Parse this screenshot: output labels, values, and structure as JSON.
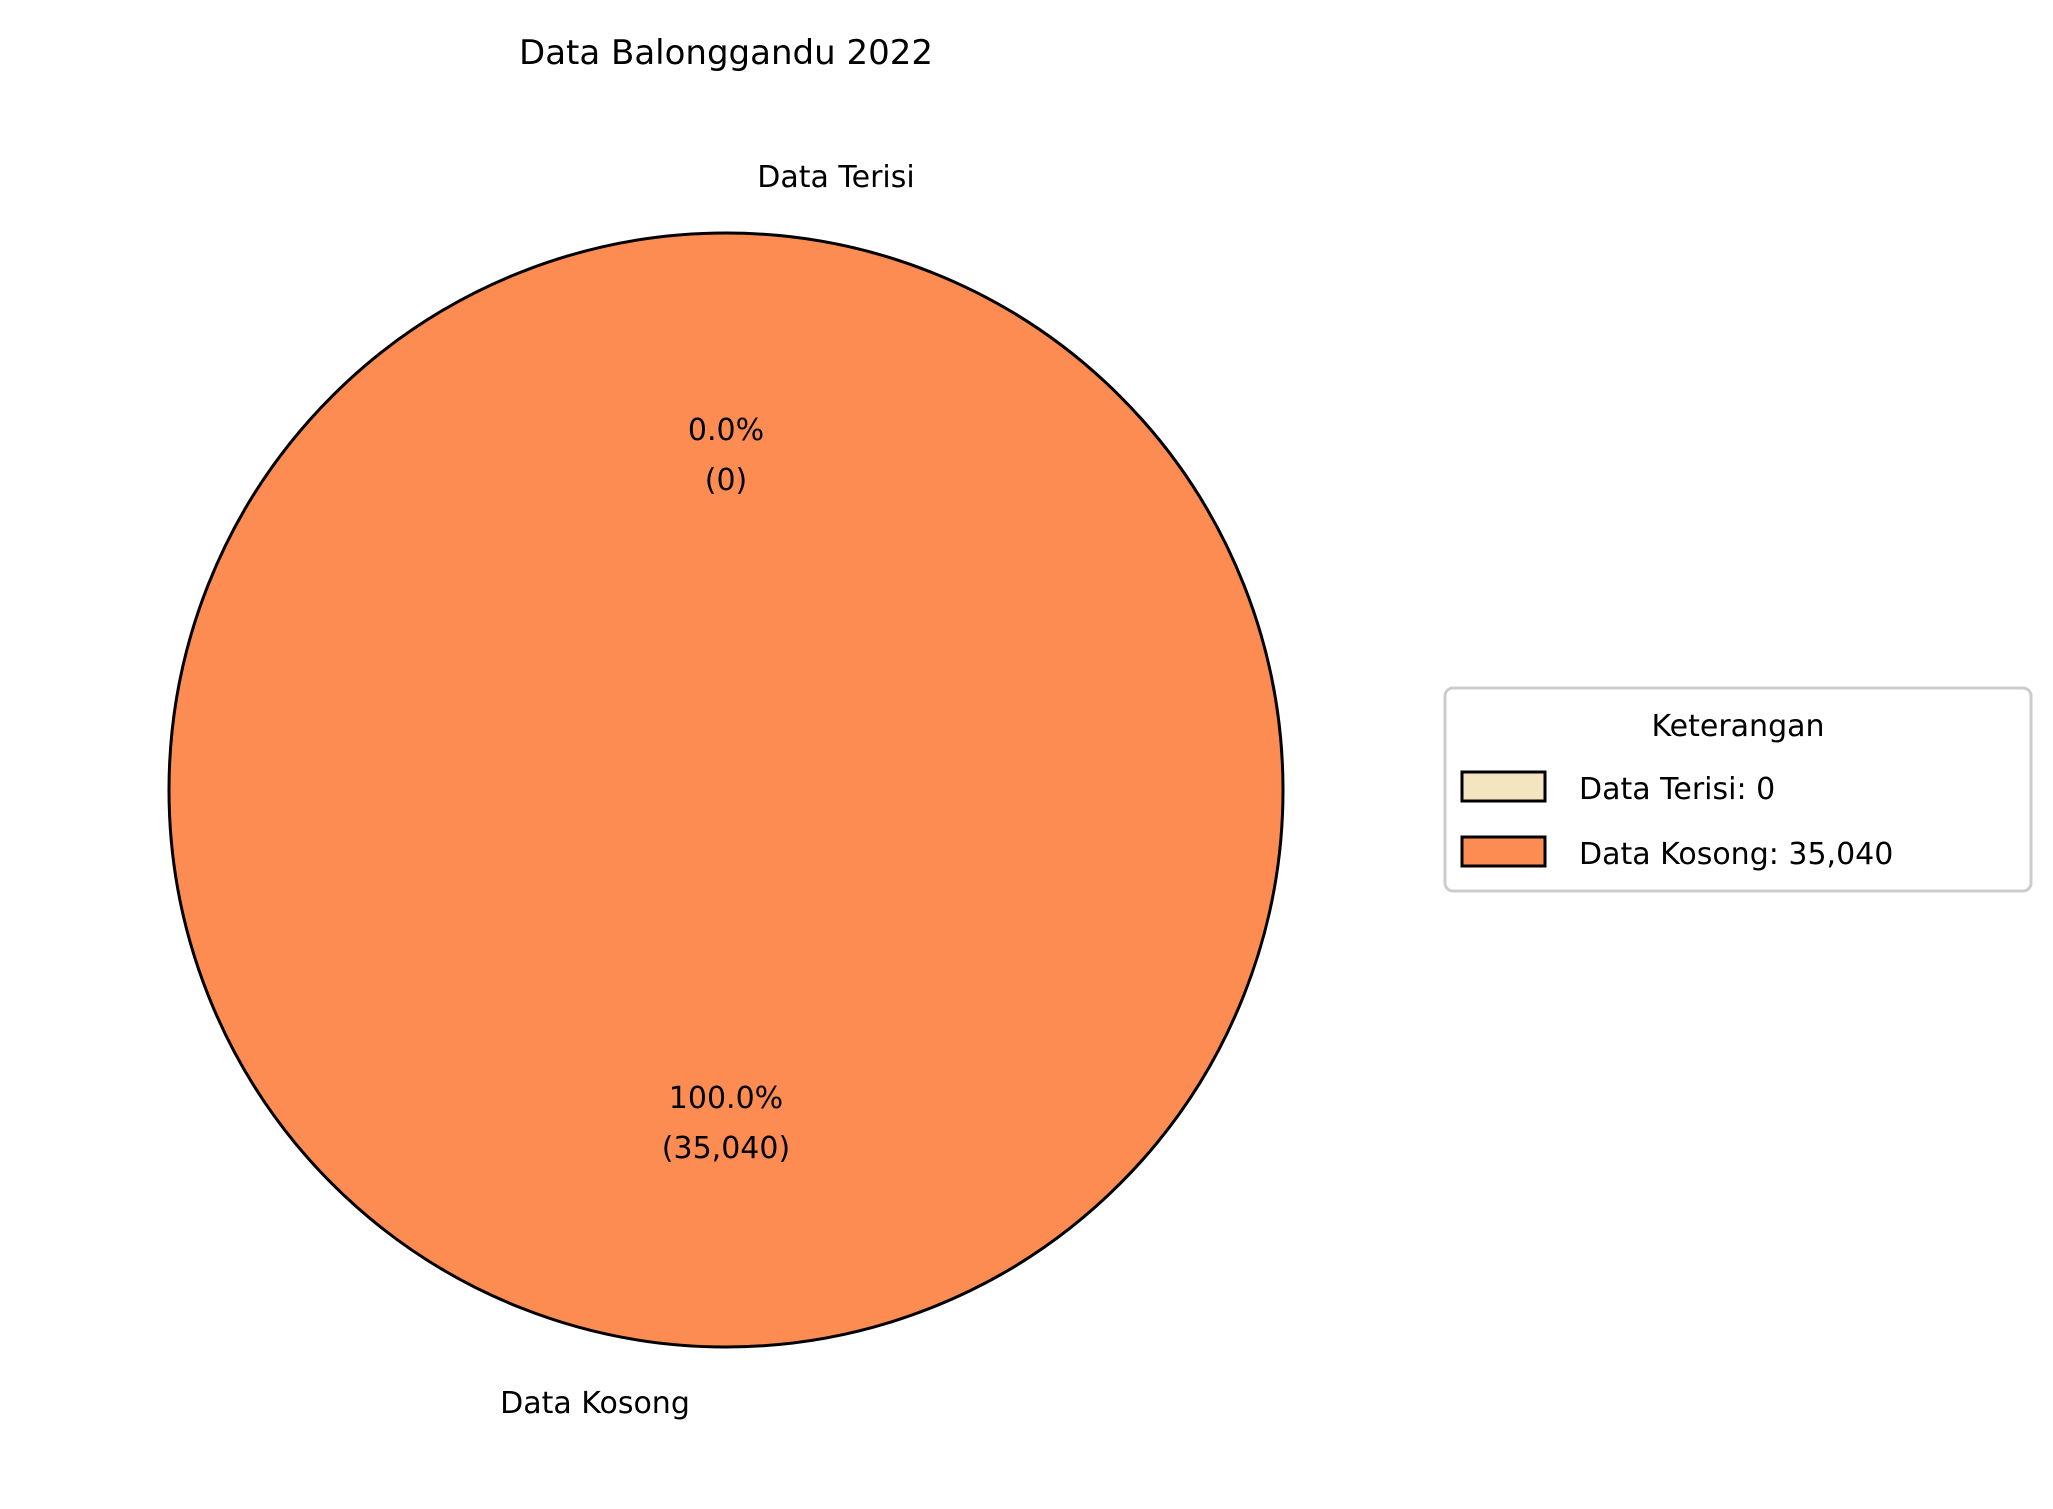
{
  "chart_data": {
    "type": "pie",
    "title": "Data Balonggandu 2022",
    "slices": [
      {
        "label": "Data Terisi",
        "value": 0,
        "percent_label": "0.0%",
        "count_label": "(0)",
        "legend_label": "Data Terisi: 0",
        "color": "#f3e5c0"
      },
      {
        "label": "Data Kosong",
        "value": 35040,
        "percent_label": "100.0%",
        "count_label": "(35,040)",
        "legend_label": "Data Kosong: 35,040",
        "color": "#fd8c52"
      }
    ],
    "legend": {
      "title": "Keterangan",
      "placement": "center-right"
    },
    "start_angle_deg": 90,
    "direction": "counterclockwise"
  }
}
